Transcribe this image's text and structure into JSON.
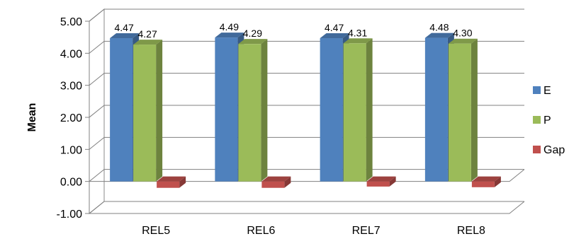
{
  "chart_data": {
    "type": "bar",
    "categories": [
      "REL5",
      "REL6",
      "REL7",
      "REL8"
    ],
    "series": [
      {
        "name": "E",
        "values": [
          4.47,
          4.49,
          4.47,
          4.48
        ],
        "color": "#4F81BD",
        "shown_labels": [
          "4.47",
          "4.49",
          "4.47",
          "4.48"
        ]
      },
      {
        "name": "P",
        "values": [
          4.27,
          4.29,
          4.31,
          4.3
        ],
        "color": "#9BBB59",
        "shown_labels": [
          "4.27",
          "4.29",
          "4.31",
          "4.30"
        ]
      },
      {
        "name": "Gap",
        "values": [
          -0.2,
          -0.2,
          -0.16,
          -0.18
        ],
        "color": "#C0504D",
        "shown_labels": null
      }
    ],
    "ylabel": "Mean",
    "xlabel": "",
    "ylim": [
      -1.0,
      5.0
    ],
    "yticks": [
      "5.00",
      "4.00",
      "3.00",
      "2.00",
      "1.00",
      "0.00",
      "-1.00"
    ],
    "grid": true,
    "legend": "right",
    "style": "3d-clustered-column"
  }
}
